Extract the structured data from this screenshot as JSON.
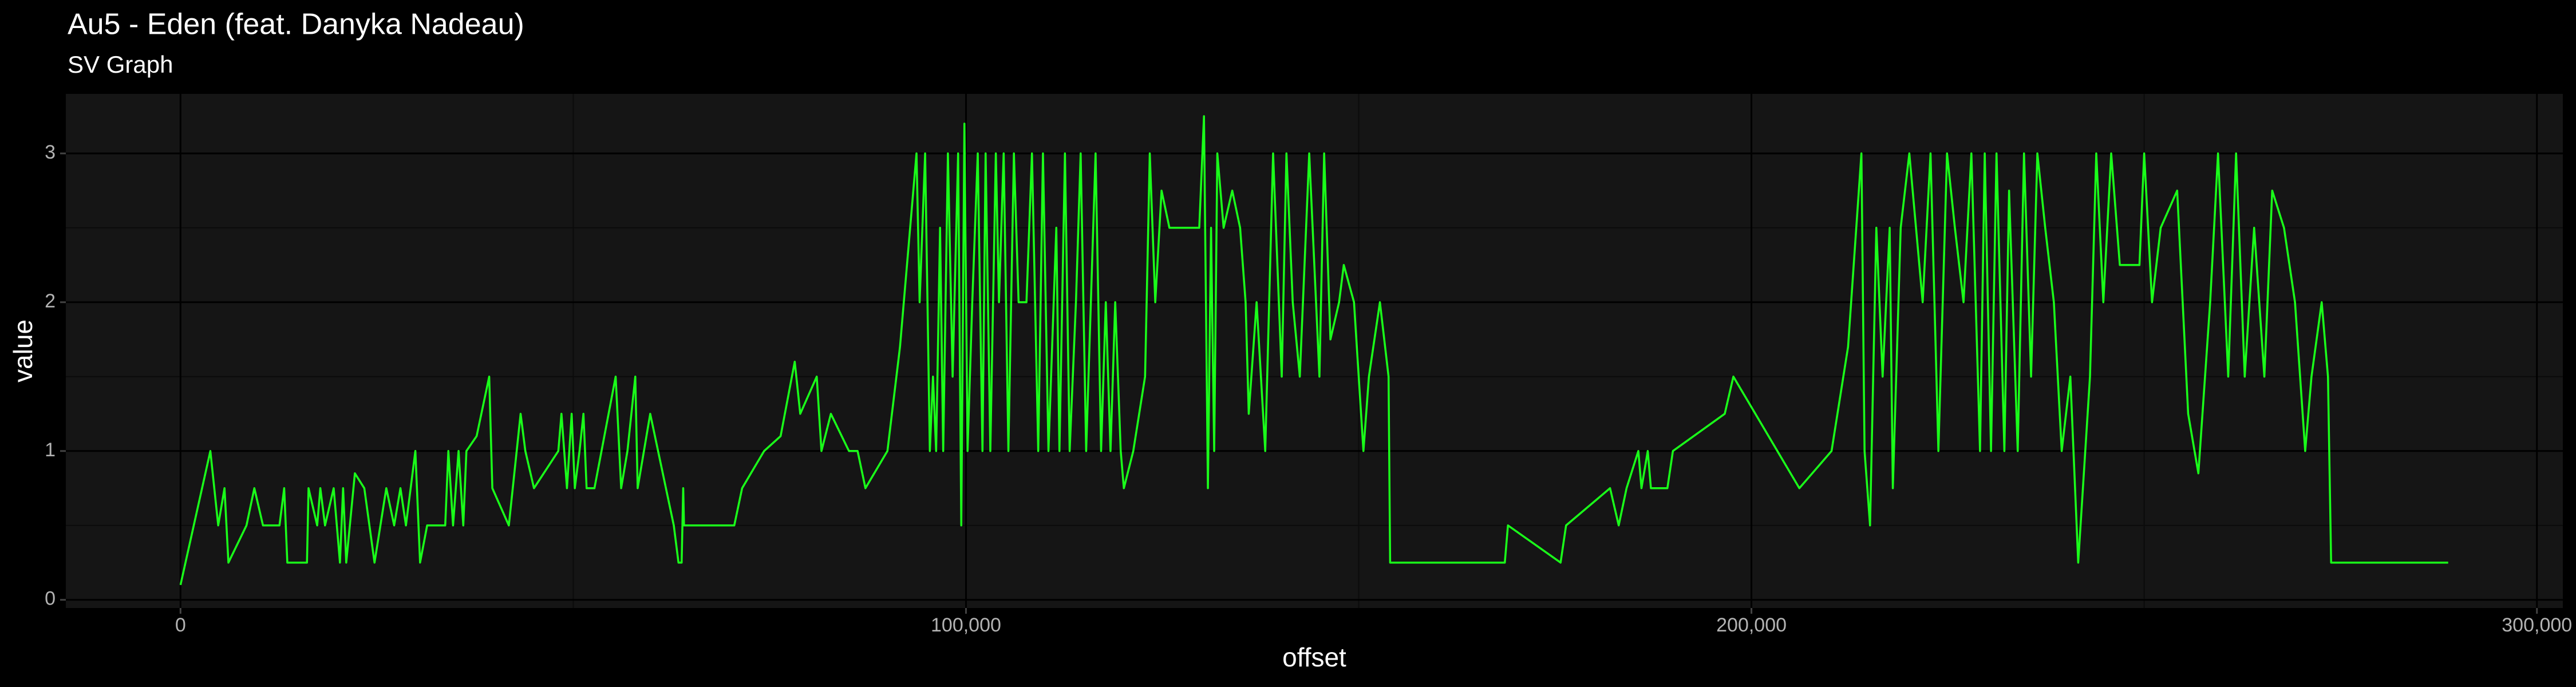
{
  "chart_data": {
    "type": "line",
    "title": "Au5 - Eden (feat. Danyka Nadeau)",
    "subtitle": "SV Graph",
    "x_label": "offset",
    "y_label": "value",
    "color": "#1aff1a",
    "grid": true,
    "xlim": [
      -14600,
      303300
    ],
    "ylim": [
      -0.055,
      3.4
    ],
    "xticks": [
      0,
      {
        "value": 100000,
        "label": "100,000"
      },
      {
        "value": 200000,
        "label": "200,000"
      },
      {
        "value": 300000,
        "label": "300,000"
      }
    ],
    "yticks": [
      0,
      1,
      2,
      3
    ],
    "x": [
      0,
      3800,
      4800,
      5600,
      6100,
      8400,
      9400,
      10500,
      12600,
      13200,
      13600,
      16100,
      16300,
      17400,
      17800,
      18400,
      19500,
      20300,
      20700,
      21100,
      22200,
      23400,
      24700,
      26200,
      27200,
      28000,
      28700,
      29900,
      30500,
      31400,
      33700,
      34100,
      34700,
      35400,
      36000,
      36400,
      37700,
      39300,
      39700,
      41800,
      43300,
      43900,
      45000,
      48100,
      48500,
      49200,
      49800,
      50200,
      50800,
      51300,
      51700,
      52700,
      55400,
      56100,
      56900,
      57900,
      58200,
      59800,
      62800,
      63400,
      63800,
      64000,
      64100,
      70500,
      71500,
      74300,
      76400,
      78200,
      78900,
      81000,
      81600,
      82800,
      85100,
      86200,
      87200,
      90000,
      91600,
      93700,
      94100,
      94800,
      95400,
      95800,
      96200,
      96700,
      97100,
      97700,
      98300,
      99000,
      99400,
      99800,
      100200,
      100800,
      101500,
      102100,
      102500,
      103100,
      103800,
      104200,
      104800,
      105400,
      106100,
      106700,
      107700,
      108400,
      109200,
      109800,
      110500,
      111500,
      111900,
      112600,
      113200,
      114000,
      114600,
      115300,
      115900,
      116500,
      117200,
      117800,
      118400,
      119000,
      119700,
      120100,
      121300,
      122800,
      123400,
      124100,
      124900,
      125900,
      129700,
      130300,
      130800,
      131200,
      131600,
      132000,
      132800,
      133900,
      134900,
      135600,
      136000,
      137000,
      138100,
      139100,
      140200,
      140800,
      141600,
      142500,
      143700,
      145000,
      145600,
      146400,
      147500,
      148100,
      149400,
      150600,
      151300,
      152700,
      153800,
      154000,
      168600,
      169000,
      175700,
      176400,
      182000,
      183100,
      184100,
      185600,
      186000,
      186800,
      187200,
      189300,
      190000,
      196600,
      197700,
      206100,
      210200,
      212300,
      214000,
      214400,
      215100,
      215900,
      216700,
      217600,
      218000,
      219000,
      220100,
      221800,
      222800,
      223800,
      224900,
      225900,
      227000,
      228000,
      229100,
      229700,
      230500,
      231200,
      232200,
      232800,
      233900,
      234700,
      235600,
      236400,
      237400,
      238500,
      239500,
      240600,
      241600,
      243100,
      243900,
      244800,
      245800,
      246900,
      249400,
      250000,
      251000,
      252100,
      254200,
      255600,
      256900,
      258400,
      259400,
      260700,
      261700,
      262800,
      264000,
      265300,
      266300,
      267800,
      269200,
      270500,
      271300,
      272600,
      273400,
      273800,
      288700
    ],
    "values": [
      0.1,
      1,
      0.5,
      0.75,
      0.25,
      0.5,
      0.75,
      0.5,
      0.5,
      0.75,
      0.25,
      0.25,
      0.75,
      0.5,
      0.75,
      0.5,
      0.75,
      0.25,
      0.75,
      0.25,
      0.85,
      0.75,
      0.25,
      0.75,
      0.5,
      0.75,
      0.5,
      1,
      0.25,
      0.5,
      0.5,
      1,
      0.5,
      1,
      0.5,
      1,
      1.1,
      1.5,
      0.75,
      0.5,
      1.25,
      1,
      0.75,
      1,
      1.25,
      0.75,
      1.25,
      0.75,
      1,
      1.25,
      0.75,
      0.75,
      1.5,
      0.75,
      1,
      1.5,
      0.75,
      1.25,
      0.5,
      0.25,
      0.25,
      0.75,
      0.5,
      0.5,
      0.75,
      1,
      1.1,
      1.6,
      1.25,
      1.5,
      1,
      1.25,
      1,
      1,
      0.75,
      1,
      1.7,
      3,
      2,
      3,
      1,
      1.5,
      1,
      2.5,
      1,
      3,
      1.5,
      3,
      0.5,
      3.2,
      1,
      2,
      3,
      1,
      3,
      1,
      3,
      2,
      3,
      1,
      3,
      2,
      2,
      3,
      1,
      3,
      1,
      2.5,
      1,
      3,
      1,
      2,
      3,
      1,
      2,
      3,
      1,
      2,
      1,
      2,
      1,
      0.75,
      1,
      1.5,
      3,
      2,
      2.75,
      2.5,
      2.5,
      3.25,
      0.75,
      2.5,
      1,
      3,
      2.5,
      2.75,
      2.5,
      2,
      1.25,
      2,
      1,
      3,
      1.5,
      3,
      2,
      1.5,
      3,
      1.5,
      3,
      1.75,
      2,
      2.25,
      2,
      1,
      1.5,
      2,
      1.5,
      0.25,
      0.25,
      0.5,
      0.25,
      0.5,
      0.75,
      0.5,
      0.75,
      1,
      0.75,
      1,
      0.75,
      0.75,
      1,
      1.25,
      1.5,
      0.75,
      1,
      1.7,
      3,
      1,
      0.5,
      2.5,
      1.5,
      2.5,
      0.75,
      2.5,
      3,
      2,
      3,
      1,
      3,
      2.5,
      2,
      3,
      1,
      3,
      1,
      3,
      1,
      2.75,
      1,
      3,
      1.5,
      3,
      2.5,
      2,
      1,
      1.5,
      0.25,
      1.5,
      3,
      2,
      3,
      2.25,
      2.25,
      3,
      2,
      2.5,
      2.75,
      1.25,
      0.85,
      2,
      3,
      1.5,
      3,
      1.5,
      2.5,
      1.5,
      2.75,
      2.5,
      2,
      1,
      1.5,
      2,
      1.5,
      0.25,
      0.25
    ]
  }
}
